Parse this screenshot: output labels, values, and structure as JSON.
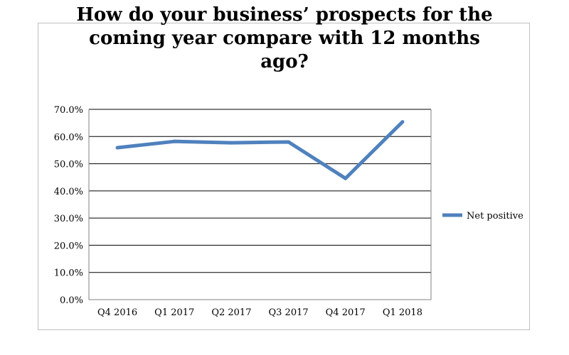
{
  "chart_data": {
    "type": "line",
    "title_lines": [
      "How do your business’ prospects for the",
      "coming year compare with 12 months",
      "ago?"
    ],
    "categories": [
      "Q4 2016",
      "Q1 2017",
      "Q2 2017",
      "Q3 2017",
      "Q4 2017",
      "Q1 2018"
    ],
    "series": [
      {
        "name": "Net positive",
        "color": "#4f81bd",
        "values": [
          55.9,
          58.2,
          57.7,
          58.0,
          44.6,
          65.4
        ]
      }
    ],
    "ylim": [
      0,
      70
    ],
    "y_ticks": [
      0,
      10,
      20,
      30,
      40,
      50,
      60,
      70
    ],
    "y_tick_labels": [
      "0.0%",
      "10.0%",
      "20.0%",
      "30.0%",
      "40.0%",
      "50.0%",
      "60.0%",
      "70.0%"
    ],
    "grid": true,
    "legend_position": "right"
  }
}
